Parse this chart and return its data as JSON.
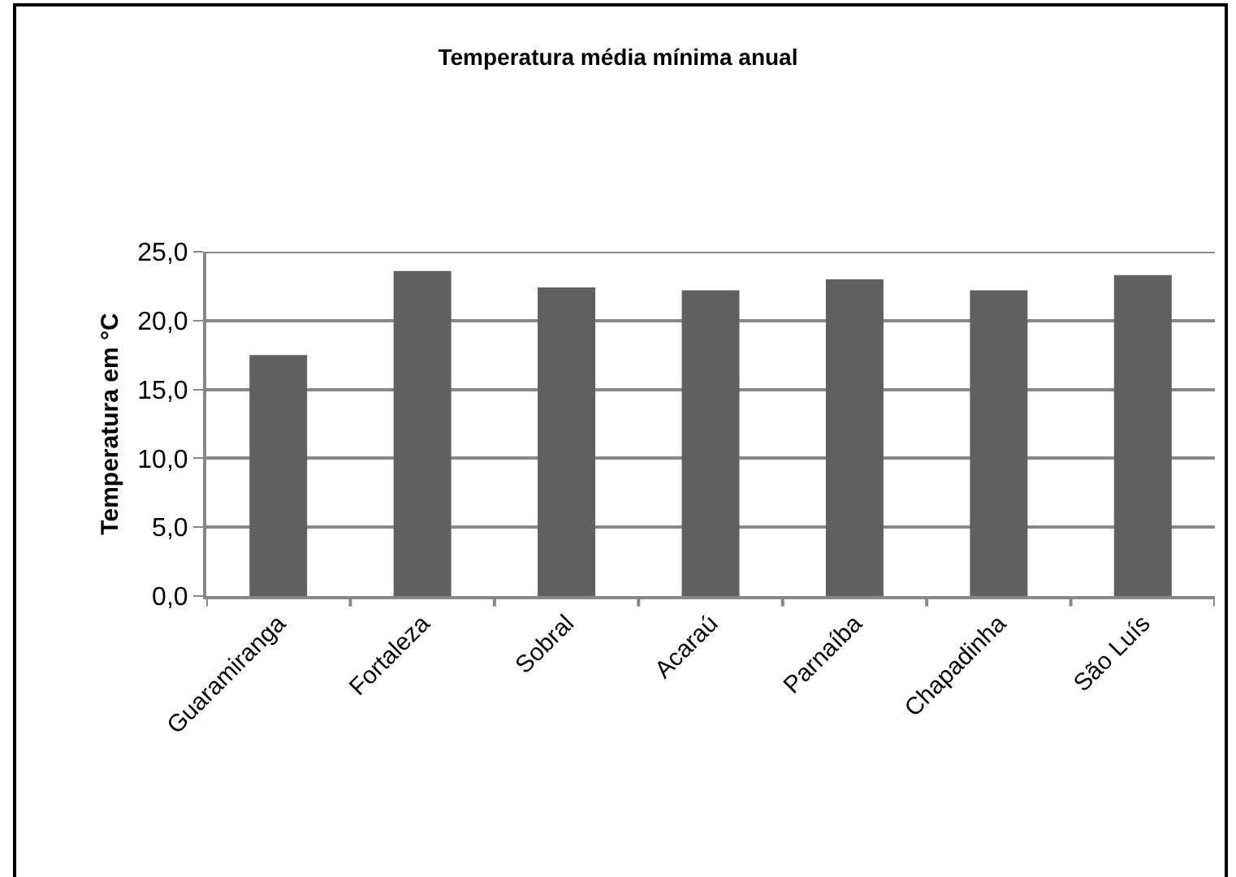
{
  "chart_data": {
    "type": "bar",
    "title": "Temperatura média mínima anual",
    "ylabel": "Temperatura em °C",
    "categories": [
      "Guaramiranga",
      "Fortaleza",
      "Sobral",
      "Acaraú",
      "Parnaíba",
      "Chapadinha",
      "São Luís"
    ],
    "values": [
      17.5,
      23.6,
      22.4,
      22.2,
      23.0,
      22.2,
      23.3
    ],
    "color": "#606060",
    "ylim": [
      0,
      25
    ],
    "yticks": [
      {
        "value": 0,
        "label": "0,0"
      },
      {
        "value": 5,
        "label": "5,0"
      },
      {
        "value": 10,
        "label": "10,0"
      },
      {
        "value": 15,
        "label": "15,0"
      },
      {
        "value": 20,
        "label": "20,0"
      },
      {
        "value": 25,
        "label": "25,0"
      }
    ],
    "grid": true
  }
}
